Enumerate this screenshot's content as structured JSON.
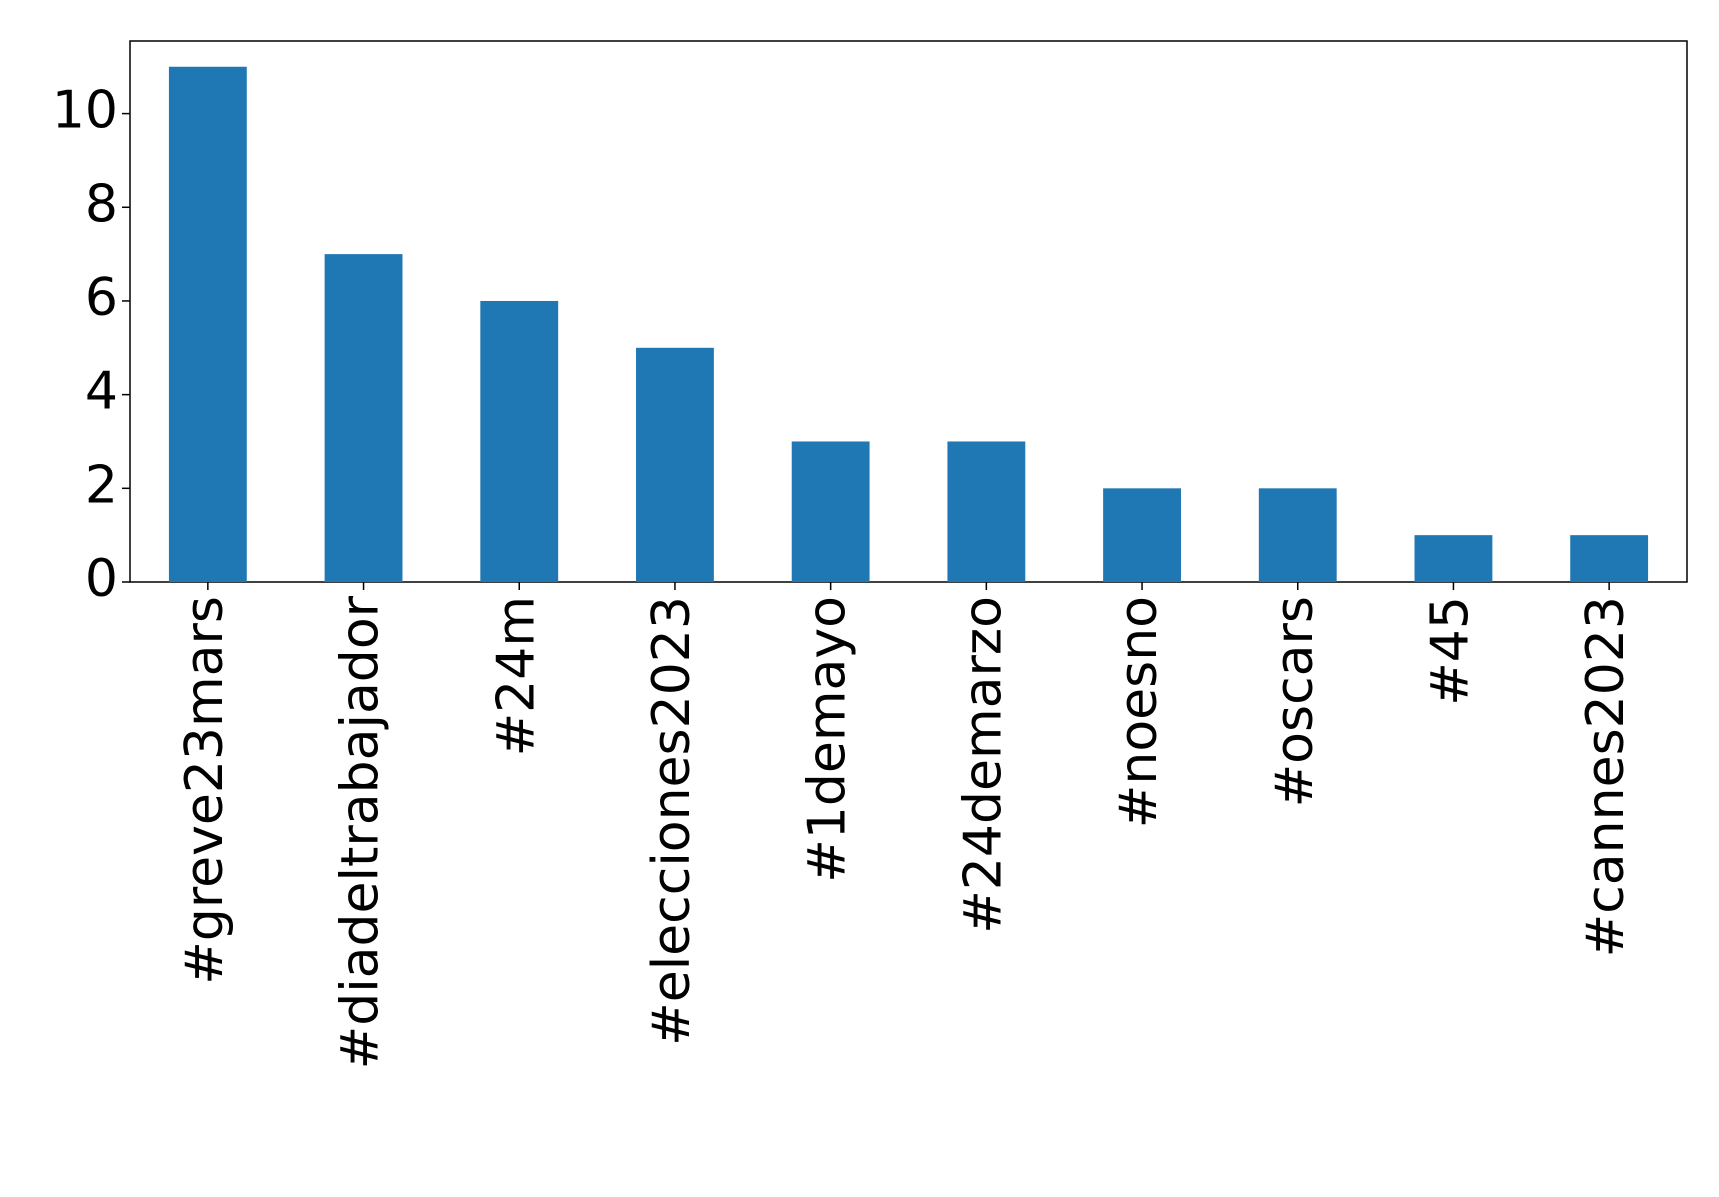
{
  "chart_data": {
    "type": "bar",
    "categories": [
      "#greve23mars",
      "#diadeltrabajador",
      "#24m",
      "#elecciones2023",
      "#1demayo",
      "#24demarzo",
      "#noesno",
      "#oscars",
      "#45",
      "#cannes2023"
    ],
    "values": [
      11,
      7,
      6,
      5,
      3,
      3,
      2,
      2,
      1,
      1
    ],
    "color": "#1f77b4",
    "ylim": [
      0,
      11.55
    ],
    "yticks": [
      0,
      2,
      4,
      6,
      8,
      10
    ],
    "grid": false
  }
}
